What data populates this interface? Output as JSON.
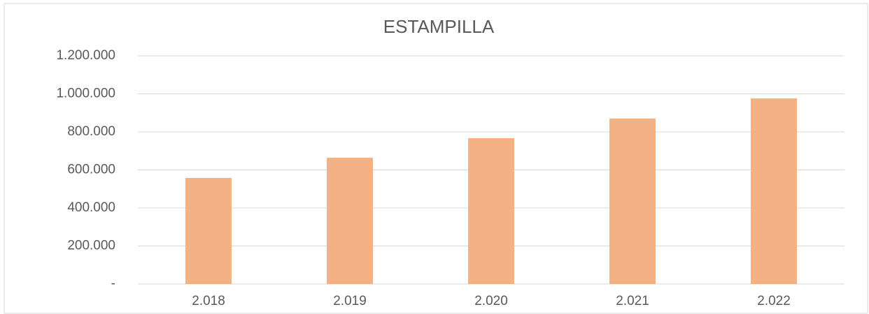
{
  "chart_data": {
    "type": "bar",
    "title": "ESTAMPILLA",
    "categories": [
      "2.018",
      "2.019",
      "2.020",
      "2.021",
      "2.022"
    ],
    "values": [
      558000,
      664000,
      767000,
      870000,
      976000
    ],
    "color": "#f4b183",
    "ylim": [
      0,
      1200000
    ],
    "yticks": [
      {
        "value": 0,
        "label": "-"
      },
      {
        "value": 200000,
        "label": "200.000"
      },
      {
        "value": 400000,
        "label": "400.000"
      },
      {
        "value": 600000,
        "label": "600.000"
      },
      {
        "value": 800000,
        "label": "800.000"
      },
      {
        "value": 1000000,
        "label": "1.000.000"
      },
      {
        "value": 1200000,
        "label": "1.200.000"
      }
    ],
    "grid": true
  }
}
